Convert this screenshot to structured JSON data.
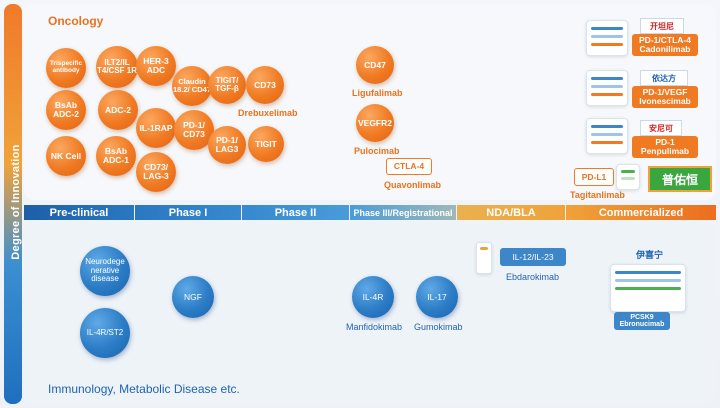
{
  "side_label": "Degree of Innovation",
  "oncology_title": "Oncology",
  "immunology_title": "Immunology, Metabolic Disease etc.",
  "phases": [
    "Pre-clinical",
    "Phase I",
    "Phase II",
    "Phase III/Registrational",
    "NDA/BLA",
    "Commercialized"
  ],
  "oncology": {
    "trispecific": "Trispecific antibody",
    "bsab_adc2": "BsAb ADC-2",
    "nk_cell": "NK Cell",
    "ilt2": "ILT2/IL T4/CSF 1R",
    "adc2": "ADC-2",
    "bsab_adc1": "BsAb ADC-1",
    "her3": "HER-3 ADC",
    "il1rap": "IL-1RAP",
    "cd73_lag3": "CD73/ LAG-3",
    "claudin": "Claudin 18.2/ CD47",
    "pd1_cd73": "PD-1/ CD73",
    "tigit_tgf": "TIGIT/ TGF-β",
    "pd1_lag3": "PD-1/ LAG3",
    "cd73": "CD73",
    "drebuxelimab": "Drebuxelimab",
    "tigit": "TIGIT",
    "cd47": "CD47",
    "ligufalimab": "Ligufalimab",
    "vegfr2": "VEGFR2",
    "pulocimab": "Pulocimab",
    "ctla4": "CTLA-4",
    "quavonlimab": "Quavonlimab",
    "pdl1": "PD-L1",
    "tagitanlimab": "Tagitanlimab",
    "brand_tagitan": "普佑恒",
    "cadonilimab_box": "PD-1/CTLA-4 Cadonilimab",
    "brand_cadon": "开坦尼",
    "ivonescimab_box": "PD-1/VEGF Ivonescimab",
    "brand_ivon": "依达方",
    "penpulimab_box": "PD-1 Penpulimab",
    "brand_penpu": "安尼可"
  },
  "immunology": {
    "neuro": "Neurodege nerative disease",
    "il4r_st2": "IL-4R/ST2",
    "ngf": "NGF",
    "il4r": "IL-4R",
    "manfidokimab": "Manfidokimab",
    "il17": "IL-17",
    "gumokimab": "Gumokimab",
    "il12_23": "IL-12/IL-23",
    "ebdarokimab": "Ebdarokimab",
    "brand_ebro": "伊喜宁",
    "pcsk9": "PCSK9",
    "ebronucimab": "Ebronucimab"
  }
}
